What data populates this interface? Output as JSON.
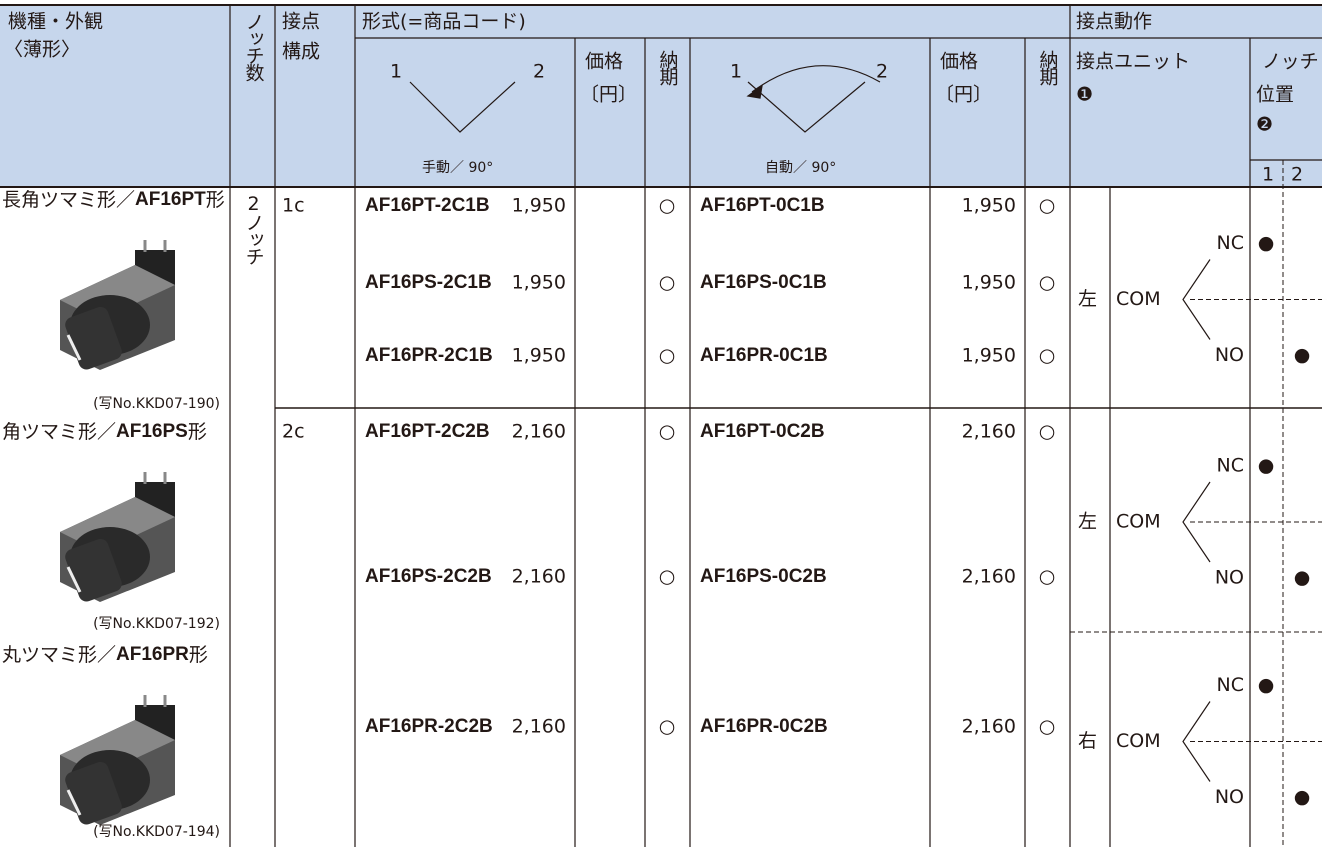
{
  "header": {
    "model": "機種・外観",
    "model_sub": "〈薄形〉",
    "notch_count": "ノッチ数",
    "contact_config": [
      "接点",
      "構成"
    ],
    "format": "形式(=商品コード)",
    "manual_pos1": "1",
    "manual_pos2": "2",
    "manual_label": "手動／ 90°",
    "auto_pos1": "1",
    "auto_pos2": "2",
    "auto_label": "自動／ 90°",
    "price": [
      "価格",
      "〔円〕"
    ],
    "delivery": "納期",
    "contact_action": "接点動作",
    "contact_unit": "接点ユニット",
    "contact_unit_mark": "❶",
    "notch_position": [
      "ノッチ",
      "位置"
    ],
    "notch_position_mark": "❷",
    "notch_1": "1",
    "notch_2": "2"
  },
  "products": [
    {
      "prefix": "長角ツマミ形／",
      "model": "AF16PT",
      "suffix": "形",
      "caption": "(写No.KKD07-190)"
    },
    {
      "prefix": "角ツマミ形／",
      "model": "AF16PS",
      "suffix": "形",
      "caption": "(写No.KKD07-192)"
    },
    {
      "prefix": "丸ツマミ形／",
      "model": "AF16PR",
      "suffix": "形",
      "caption": "(写No.KKD07-194)"
    }
  ],
  "notches": "2ノッチ",
  "groups": [
    {
      "config": "1c",
      "items": [
        {
          "manual_code": "AF16PT-2C1B",
          "manual_price": "1,950",
          "manual_delivery": "○",
          "auto_code": "AF16PT-0C1B",
          "auto_price": "1,950",
          "auto_delivery": "○"
        },
        {
          "manual_code": "AF16PS-2C1B",
          "manual_price": "1,950",
          "manual_delivery": "○",
          "auto_code": "AF16PS-0C1B",
          "auto_price": "1,950",
          "auto_delivery": "○"
        },
        {
          "manual_code": "AF16PR-2C1B",
          "manual_price": "1,950",
          "manual_delivery": "○",
          "auto_code": "AF16PR-0C1B",
          "auto_price": "1,950",
          "auto_delivery": "○"
        }
      ],
      "units": [
        {
          "side": "左",
          "com": "COM",
          "nc": "NC",
          "no": "NO",
          "nc_mark": "●",
          "no_mark": "●"
        }
      ]
    },
    {
      "config": "2c",
      "items": [
        {
          "manual_code": "AF16PT-2C2B",
          "manual_price": "2,160",
          "manual_delivery": "○",
          "auto_code": "AF16PT-0C2B",
          "auto_price": "2,160",
          "auto_delivery": "○"
        },
        {
          "manual_code": "AF16PS-2C2B",
          "manual_price": "2,160",
          "manual_delivery": "○",
          "auto_code": "AF16PS-0C2B",
          "auto_price": "2,160",
          "auto_delivery": "○"
        },
        {
          "manual_code": "AF16PR-2C2B",
          "manual_price": "2,160",
          "manual_delivery": "○",
          "auto_code": "AF16PR-0C2B",
          "auto_price": "2,160",
          "auto_delivery": "○"
        }
      ],
      "units": [
        {
          "side": "左",
          "com": "COM",
          "nc": "NC",
          "no": "NO",
          "nc_mark": "●",
          "no_mark": "●"
        },
        {
          "side": "右",
          "com": "COM",
          "nc": "NC",
          "no": "NO",
          "nc_mark": "●",
          "no_mark": "●"
        }
      ]
    }
  ]
}
